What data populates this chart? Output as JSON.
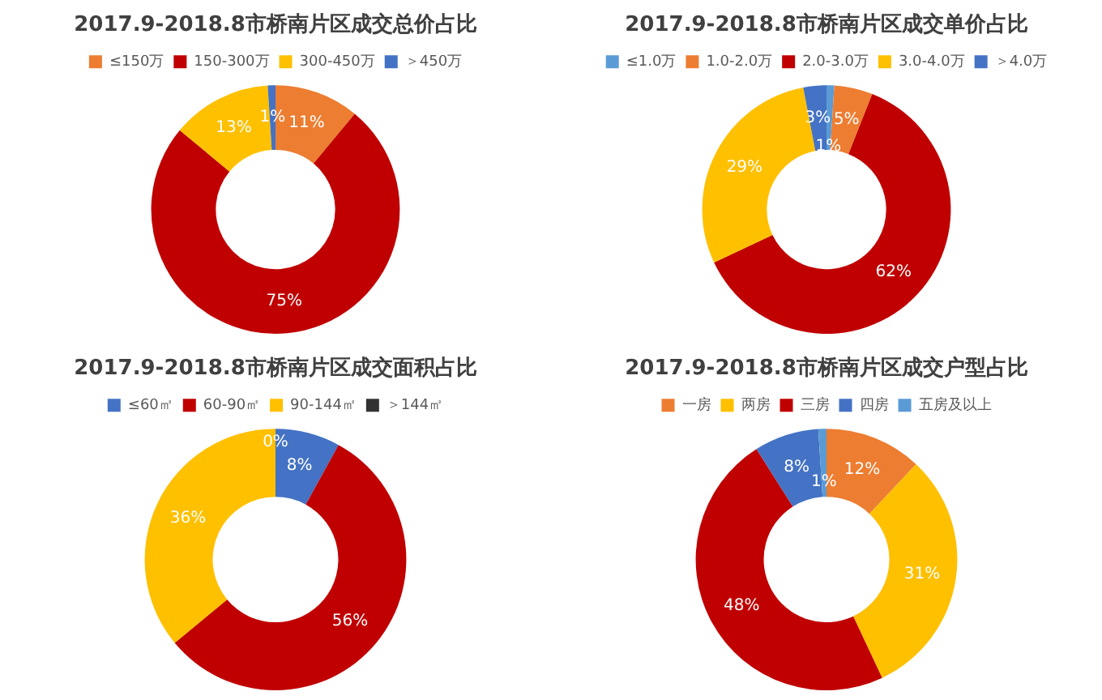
{
  "chart_data": [
    {
      "type": "donut",
      "title": "2017.9-2018.8市桥南片区成交总价占比",
      "categories": [
        "≤150万",
        "150-300万",
        "300-450万",
        "＞450万"
      ],
      "values": [
        11,
        75,
        13,
        1
      ],
      "value_labels": [
        "11%",
        "75%",
        "13%",
        "1%"
      ],
      "colors": [
        "#ed7d31",
        "#c00000",
        "#ffc000",
        "#4472c4"
      ],
      "legend": "top"
    },
    {
      "type": "donut",
      "title": "2017.9-2018.8市桥南片区成交单价占比",
      "categories": [
        "≤1.0万",
        "1.0-2.0万",
        "2.0-3.0万",
        "3.0-4.0万",
        "＞4.0万"
      ],
      "values": [
        1,
        5,
        62,
        29,
        3
      ],
      "value_labels": [
        "1%",
        "5%",
        "62%",
        "29%",
        "3%"
      ],
      "colors": [
        "#5b9bd5",
        "#ed7d31",
        "#c00000",
        "#ffc000",
        "#4472c4"
      ],
      "legend": "top"
    },
    {
      "type": "donut",
      "title": "2017.9-2018.8市桥南片区成交面积占比",
      "categories": [
        "≤60㎡",
        "60-90㎡",
        "90-144㎡",
        "＞144㎡"
      ],
      "values": [
        8,
        56,
        36,
        0
      ],
      "value_labels": [
        "8%",
        "56%",
        "36%",
        "0%"
      ],
      "colors": [
        "#4472c4",
        "#c00000",
        "#ffc000",
        "#333333"
      ],
      "legend": "top"
    },
    {
      "type": "donut",
      "title": "2017.9-2018.8市桥南片区成交户型占比",
      "categories": [
        "一房",
        "两房",
        "三房",
        "四房",
        "五房及以上"
      ],
      "values": [
        12,
        31,
        48,
        8,
        1
      ],
      "value_labels": [
        "12%",
        "31%",
        "48%",
        "8%",
        "1%"
      ],
      "colors": [
        "#ed7d31",
        "#ffc000",
        "#c00000",
        "#4472c4",
        "#5b9bd5"
      ],
      "legend": "top"
    }
  ]
}
